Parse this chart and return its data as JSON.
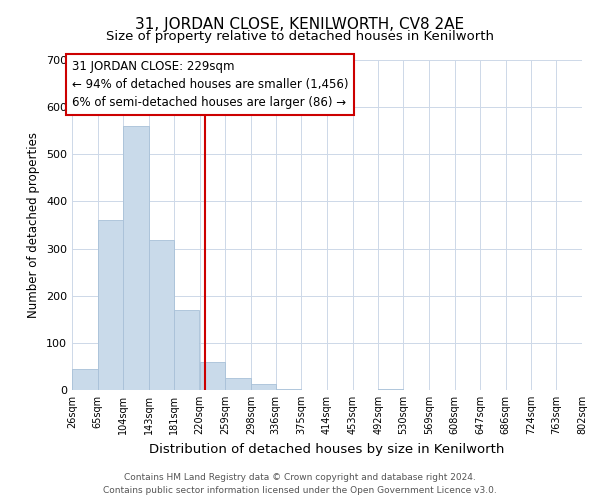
{
  "title": "31, JORDAN CLOSE, KENILWORTH, CV8 2AE",
  "subtitle": "Size of property relative to detached houses in Kenilworth",
  "xlabel": "Distribution of detached houses by size in Kenilworth",
  "ylabel": "Number of detached properties",
  "bar_edges": [
    26,
    65,
    104,
    143,
    181,
    220,
    259,
    298,
    336,
    375,
    414,
    453,
    492,
    530,
    569,
    608,
    647,
    686,
    724,
    763,
    802
  ],
  "bar_heights": [
    45,
    360,
    560,
    318,
    170,
    60,
    25,
    12,
    3,
    0,
    0,
    0,
    2,
    0,
    0,
    0,
    0,
    0,
    0,
    0,
    2
  ],
  "bar_color": "#c9daea",
  "bar_edge_color": "#a8c0d8",
  "vline_x": 229,
  "vline_color": "#cc0000",
  "annotation_title": "31 JORDAN CLOSE: 229sqm",
  "annotation_line1": "← 94% of detached houses are smaller (1,456)",
  "annotation_line2": "6% of semi-detached houses are larger (86) →",
  "annotation_fontsize": 8.5,
  "ylim": [
    0,
    700
  ],
  "yticks": [
    0,
    100,
    200,
    300,
    400,
    500,
    600,
    700
  ],
  "tick_labels": [
    "26sqm",
    "65sqm",
    "104sqm",
    "143sqm",
    "181sqm",
    "220sqm",
    "259sqm",
    "298sqm",
    "336sqm",
    "375sqm",
    "414sqm",
    "453sqm",
    "492sqm",
    "530sqm",
    "569sqm",
    "608sqm",
    "647sqm",
    "686sqm",
    "724sqm",
    "763sqm",
    "802sqm"
  ],
  "footer_line1": "Contains HM Land Registry data © Crown copyright and database right 2024.",
  "footer_line2": "Contains public sector information licensed under the Open Government Licence v3.0.",
  "background_color": "#ffffff",
  "grid_color": "#cdd8e8",
  "title_fontsize": 11,
  "subtitle_fontsize": 9.5,
  "xlabel_fontsize": 9.5,
  "ylabel_fontsize": 8.5,
  "tick_fontsize": 7,
  "footer_fontsize": 6.5
}
